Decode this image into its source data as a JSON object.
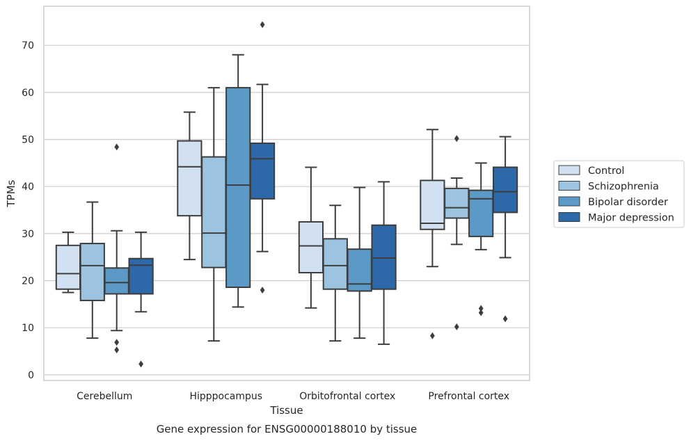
{
  "caption": "Gene expression for ENSG00000188010 by tissue",
  "chart_data": {
    "type": "box",
    "title": "",
    "xlabel": "Tissue",
    "ylabel": "TPMs",
    "ylim": [
      -1.2,
      78.3
    ],
    "yticks": [
      0,
      10,
      20,
      30,
      40,
      50,
      60,
      70
    ],
    "grid": "horizontal",
    "legend_position": "outside-right",
    "categories": [
      "Cerebellum",
      "Hipppocampus",
      "Orbitofrontal cortex",
      "Prefrontal cortex"
    ],
    "series": [
      {
        "name": "Control",
        "color": "#d1e1f1",
        "boxes": [
          {
            "whislo": 17.5,
            "q1": 18.2,
            "med": 21.5,
            "q3": 27.5,
            "whishi": 30.3,
            "fliers": []
          },
          {
            "whislo": 24.5,
            "q1": 33.8,
            "med": 44.2,
            "q3": 49.7,
            "whishi": 55.8,
            "fliers": []
          },
          {
            "whislo": 14.2,
            "q1": 21.7,
            "med": 27.4,
            "q3": 32.5,
            "whishi": 44.1,
            "fliers": []
          },
          {
            "whislo": 23.0,
            "q1": 30.9,
            "med": 32.2,
            "q3": 41.3,
            "whishi": 52.1,
            "fliers": [
              8.3
            ]
          }
        ]
      },
      {
        "name": "Schizophrenia",
        "color": "#9cc3df",
        "boxes": [
          {
            "whislo": 7.8,
            "q1": 15.8,
            "med": 23.2,
            "q3": 27.9,
            "whishi": 36.7,
            "fliers": []
          },
          {
            "whislo": 7.2,
            "q1": 22.8,
            "med": 30.1,
            "q3": 46.3,
            "whishi": 61.0,
            "fliers": []
          },
          {
            "whislo": 7.2,
            "q1": 18.2,
            "med": 23.2,
            "q3": 28.9,
            "whishi": 36.0,
            "fliers": []
          },
          {
            "whislo": 27.7,
            "q1": 33.3,
            "med": 35.5,
            "q3": 39.6,
            "whishi": 41.8,
            "fliers": [
              50.2,
              10.2
            ]
          }
        ]
      },
      {
        "name": "Bipolar disorder",
        "color": "#5b9ac6",
        "boxes": [
          {
            "whislo": 9.4,
            "q1": 17.2,
            "med": 19.6,
            "q3": 22.7,
            "whishi": 30.6,
            "fliers": [
              48.4,
              6.9,
              5.3
            ]
          },
          {
            "whislo": 14.4,
            "q1": 18.6,
            "med": 40.3,
            "q3": 61.0,
            "whishi": 68.0,
            "fliers": []
          },
          {
            "whislo": 7.8,
            "q1": 17.8,
            "med": 19.3,
            "q3": 26.7,
            "whishi": 39.8,
            "fliers": []
          },
          {
            "whislo": 26.6,
            "q1": 29.4,
            "med": 37.4,
            "q3": 39.2,
            "whishi": 45.0,
            "fliers": [
              14.1,
              13.2
            ]
          }
        ]
      },
      {
        "name": "Major depression",
        "color": "#2d69a8",
        "boxes": [
          {
            "whislo": 13.4,
            "q1": 17.2,
            "med": 23.3,
            "q3": 24.7,
            "whishi": 30.3,
            "fliers": [
              2.3
            ]
          },
          {
            "whislo": 26.2,
            "q1": 37.4,
            "med": 45.9,
            "q3": 49.2,
            "whishi": 61.7,
            "fliers": [
              74.4,
              18.0
            ]
          },
          {
            "whislo": 6.5,
            "q1": 18.2,
            "med": 24.8,
            "q3": 31.8,
            "whishi": 41.0,
            "fliers": []
          },
          {
            "whislo": 24.9,
            "q1": 34.5,
            "med": 38.9,
            "q3": 44.1,
            "whishi": 50.6,
            "fliers": [
              11.9
            ]
          }
        ]
      }
    ]
  }
}
